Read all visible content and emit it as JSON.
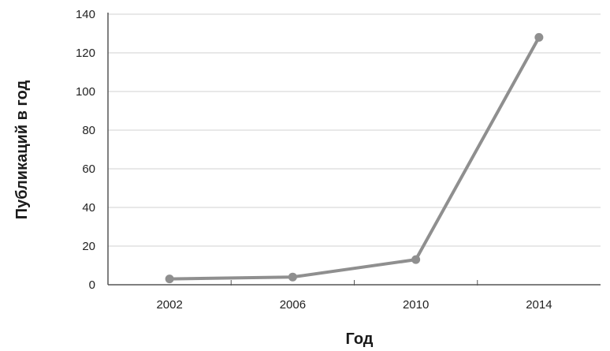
{
  "chart_data": {
    "type": "line",
    "xlabel": "Год",
    "ylabel": "Публикаций в год",
    "x": [
      2002,
      2006,
      2010,
      2014
    ],
    "series": [
      {
        "values": [
          3,
          4,
          13,
          128
        ]
      }
    ],
    "ylim": [
      0,
      140
    ],
    "yticks": [
      0,
      20,
      40,
      60,
      80,
      100,
      120,
      140
    ],
    "xticks": [
      2002,
      2006,
      2010,
      2014
    ],
    "grid": "horizontal",
    "colors": {
      "line": "#8f8f8f",
      "grid": "#d9d9d9",
      "axis": "#555555"
    }
  }
}
